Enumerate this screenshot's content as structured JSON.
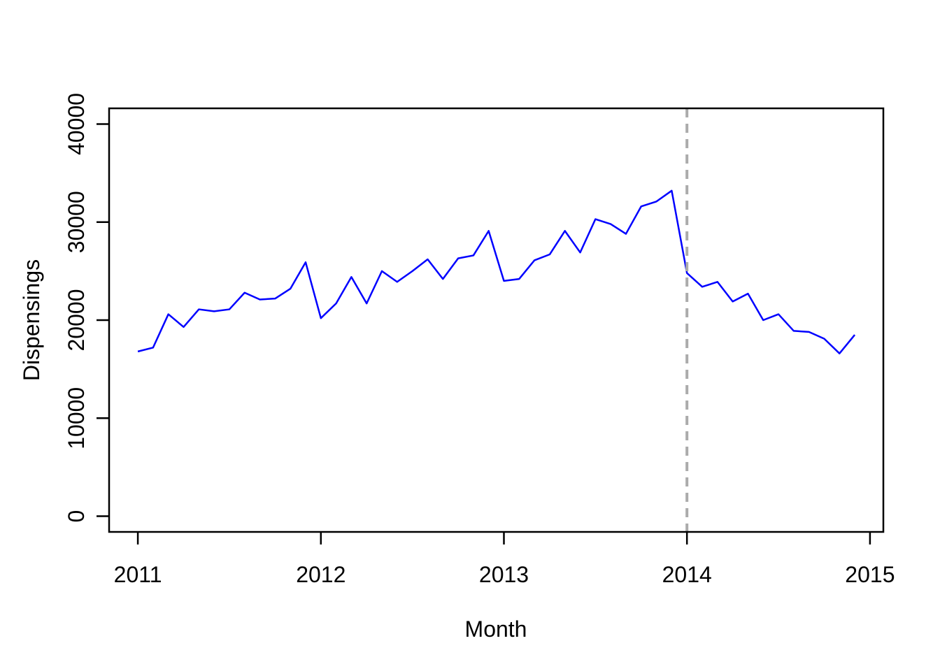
{
  "chart_data": {
    "type": "line",
    "title": "",
    "xlabel": "Month",
    "ylabel": "Dispensings",
    "x_ticks": [
      2011,
      2012,
      2013,
      2014,
      2015
    ],
    "x_tick_labels": [
      "2011",
      "2012",
      "2013",
      "2014",
      "2015"
    ],
    "y_ticks": [
      0,
      10000,
      20000,
      30000,
      40000
    ],
    "y_tick_labels": [
      "0",
      "10000",
      "20000",
      "30000",
      "40000"
    ],
    "xlim": [
      2010.843,
      2015.073
    ],
    "ylim": [
      -1600,
      41600
    ],
    "grid": false,
    "legend": "none",
    "axis_color": "#000000",
    "background_color": "#ffffff",
    "series": [
      {
        "name": "Dispensings",
        "color": "#0000FF",
        "line_width": 2.5,
        "start": "2011-01",
        "frequency": "monthly",
        "x_start_year": 2011,
        "x_step_years": 0.0833333,
        "values": [
          16800,
          17200,
          20600,
          19300,
          21100,
          20900,
          21100,
          22800,
          22100,
          22200,
          23200,
          25900,
          20200,
          21700,
          24400,
          21700,
          25000,
          23900,
          25000,
          26200,
          24200,
          26300,
          26600,
          29100,
          24000,
          24200,
          26100,
          26700,
          29100,
          26900,
          30300,
          29800,
          28800,
          31600,
          32100,
          33200,
          24800,
          23400,
          23900,
          21900,
          22700,
          20000,
          20600,
          18900,
          18800,
          18100,
          16600,
          18500
        ]
      }
    ],
    "reference_lines": [
      {
        "axis": "x",
        "value": 2014,
        "style": "dashed",
        "color": "#ABABAB",
        "line_width": 4
      }
    ]
  }
}
